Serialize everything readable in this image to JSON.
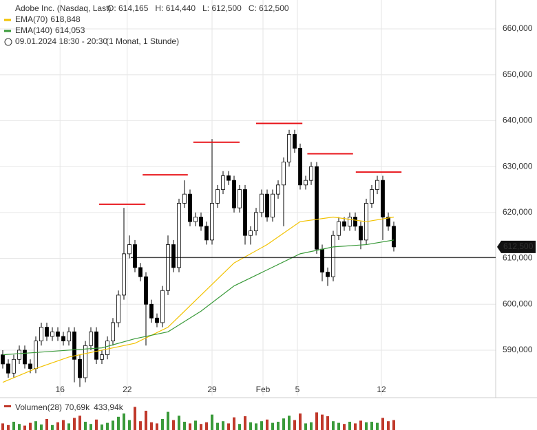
{
  "chart_data": {
    "type": "candlestick",
    "header": {
      "instrument": "Adobe Inc. (Nasdaq, Last)",
      "ohlc": [
        "O: 614,165",
        "H: 614,440",
        "L: 612,500",
        "C: 612,500"
      ],
      "period": "09.01.2024 18:30 - 20:30",
      "interval": "(1 Monat, 1 Stunde)"
    },
    "xlim": [
      -0.5,
      89.5
    ],
    "ylim": [
      580.1,
      666.3
    ],
    "xticks": [
      {
        "value": 10.4,
        "label": "16"
      },
      {
        "value": 22.6,
        "label": "22"
      },
      {
        "value": 38,
        "label": "29"
      },
      {
        "value": 47.25,
        "label": "Feb"
      },
      {
        "value": 53.5,
        "label": "5"
      },
      {
        "value": 68.75,
        "label": "12"
      }
    ],
    "yticks": [
      {
        "value": 590,
        "label": "590,000"
      },
      {
        "value": 600,
        "label": "600,000"
      },
      {
        "value": 610,
        "label": "610,000"
      },
      {
        "value": 620,
        "label": "620,000"
      },
      {
        "value": 630,
        "label": "630,000"
      },
      {
        "value": 640,
        "label": "640,000"
      },
      {
        "value": 650,
        "label": "650,000"
      },
      {
        "value": 660,
        "label": "660,000"
      }
    ],
    "grid": true,
    "open": [
      589,
      587,
      585,
      588,
      590,
      587,
      586,
      592,
      595,
      593,
      594,
      593,
      592,
      594,
      588,
      584,
      591,
      594,
      588,
      589,
      592,
      596,
      602,
      611,
      613,
      608,
      606,
      600,
      597,
      596,
      603,
      613,
      608,
      622,
      624,
      618,
      619,
      617,
      614,
      622,
      625,
      628,
      627,
      621,
      625,
      615,
      616,
      620,
      624,
      619,
      624,
      626,
      631,
      637,
      634,
      626,
      627,
      630,
      612,
      607,
      606,
      615,
      618,
      617,
      619,
      617,
      614,
      622,
      625,
      627,
      619,
      617
    ],
    "high": [
      590,
      588,
      589,
      591,
      591,
      588,
      593,
      596,
      596,
      595,
      595,
      594,
      595,
      595,
      589,
      592,
      595,
      595,
      590,
      593,
      597,
      603,
      621,
      615,
      614,
      609,
      607,
      601,
      598,
      604,
      615,
      614,
      623,
      627,
      625,
      620,
      620,
      618,
      636,
      626,
      629,
      629,
      628,
      626,
      626,
      617,
      621,
      625,
      625,
      625,
      627,
      632,
      638,
      638,
      635,
      628,
      631,
      631,
      613,
      608,
      616,
      619,
      619,
      620,
      620,
      618,
      623,
      626,
      628,
      628,
      620,
      618
    ],
    "low": [
      586,
      584,
      584,
      587,
      586,
      585,
      585,
      591,
      592,
      592,
      592,
      591,
      591,
      583,
      582,
      583,
      590,
      587,
      587,
      588,
      591,
      595,
      601,
      610,
      607,
      605,
      591,
      596,
      595,
      595,
      602,
      607,
      607,
      621,
      617,
      617,
      616,
      613,
      613,
      621,
      624,
      626,
      620,
      620,
      613,
      613,
      615,
      619,
      618,
      618,
      623,
      617,
      630,
      633,
      625,
      625,
      626,
      611,
      605,
      604,
      605,
      614,
      616,
      616,
      616,
      612,
      613,
      621,
      624,
      614,
      616,
      611.5
    ],
    "close": [
      587,
      585,
      588,
      590,
      587,
      586,
      592,
      595,
      593,
      594,
      593,
      592,
      594,
      588,
      584,
      591,
      594,
      588,
      589,
      592,
      596,
      602,
      611,
      613,
      608,
      606,
      600,
      597,
      596,
      603,
      613,
      608,
      622,
      624,
      618,
      619,
      617,
      614,
      622,
      625,
      628,
      627,
      621,
      625,
      615,
      616,
      620,
      624,
      619,
      624,
      626,
      631,
      637,
      634,
      626,
      627,
      630,
      612,
      607,
      606,
      615,
      618,
      617,
      619,
      617,
      614,
      622,
      625,
      627,
      619,
      617,
      612.5
    ],
    "last_price": {
      "value": 612.5,
      "label": "612,500"
    },
    "support_line": {
      "value": 610.2,
      "from": 23.25
    },
    "resistance_lines": [
      {
        "value": 621.8,
        "from": 17.5,
        "to": 25.9
      },
      {
        "value": 628.2,
        "from": 25.4,
        "to": 33.6
      },
      {
        "value": 635.3,
        "from": 34.6,
        "to": 43
      },
      {
        "value": 639.4,
        "from": 46,
        "to": 54.4
      },
      {
        "value": 632.8,
        "from": 55.3,
        "to": 63.6
      },
      {
        "value": 628.8,
        "from": 64.1,
        "to": 72.4
      }
    ],
    "series": [
      {
        "name": "EMA(70)",
        "value_label": "618,848",
        "color": "#f2c200",
        "x": [
          0,
          6,
          12,
          18,
          24,
          30,
          36,
          42,
          48,
          54,
          60,
          66,
          71
        ],
        "values": [
          583,
          586,
          588.5,
          590,
          591.5,
          595,
          602,
          609,
          613,
          618,
          619,
          618,
          619
        ]
      },
      {
        "name": "EMA(140)",
        "value_label": "614,053",
        "color": "#3a9a3a",
        "x": [
          0,
          6,
          12,
          18,
          24,
          30,
          36,
          42,
          48,
          54,
          60,
          66,
          71
        ],
        "values": [
          589,
          589.5,
          590,
          590.5,
          592.5,
          594,
          598.5,
          604,
          607.5,
          611,
          612.5,
          613,
          614
        ]
      }
    ],
    "volume": {
      "name": "Volumen(28)",
      "labels": [
        "70,69k",
        "433,94k"
      ],
      "ylim": [
        0,
        500
      ],
      "values": [
        120,
        90,
        150,
        110,
        80,
        130,
        160,
        100,
        200,
        90,
        140,
        180,
        120,
        220,
        260,
        150,
        110,
        190,
        100,
        130,
        170,
        240,
        300,
        180,
        420,
        160,
        350,
        140,
        120,
        200,
        330,
        180,
        260,
        150,
        120,
        170,
        110,
        140,
        280,
        130,
        160,
        120,
        230,
        110,
        250,
        140,
        120,
        160,
        190,
        130,
        150,
        210,
        260,
        180,
        300,
        120,
        140,
        320,
        280,
        250,
        160,
        130,
        110,
        150,
        120,
        170,
        140,
        150,
        130,
        220,
        160,
        180
      ]
    }
  }
}
